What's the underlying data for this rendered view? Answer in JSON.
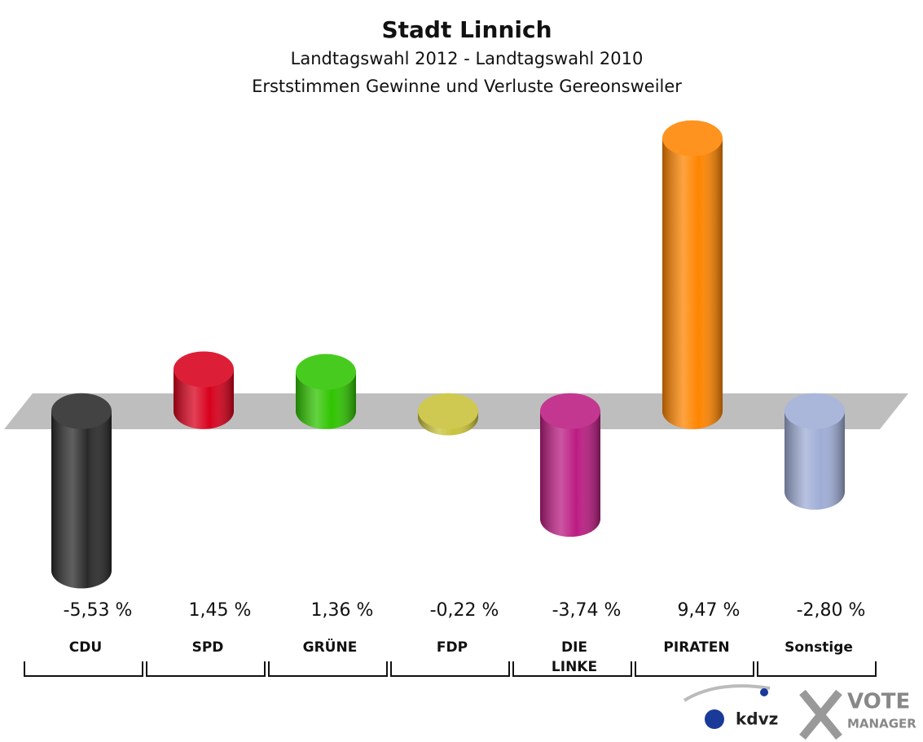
{
  "chart_data": {
    "type": "bar",
    "title": "Stadt Linnich",
    "subtitle": "Landtagswahl 2012 - Landtagswahl 2010",
    "subtitle2": "Erststimmen Gewinne und Verluste Gereonsweiler",
    "categories": [
      "CDU",
      "SPD",
      "GRÜNE",
      "FDP",
      "DIE LINKE",
      "PIRATEN",
      "Sonstige"
    ],
    "values": [
      -5.53,
      1.45,
      1.36,
      -0.22,
      -3.74,
      9.47,
      -2.8
    ],
    "value_labels": [
      "-5,53 %",
      "1,45 %",
      "1,36 %",
      "-0,22 %",
      "-3,74 %",
      "9,47 %",
      "-2,80 %"
    ],
    "colors": [
      "#2a2a2a",
      "#d8001c",
      "#2fc400",
      "#c9c23a",
      "#bb1c82",
      "#ff8500",
      "#9fadd6"
    ],
    "ylim": [
      -6,
      10
    ],
    "logos": [
      "kdvz",
      "VOTE",
      "MANAGER"
    ]
  }
}
